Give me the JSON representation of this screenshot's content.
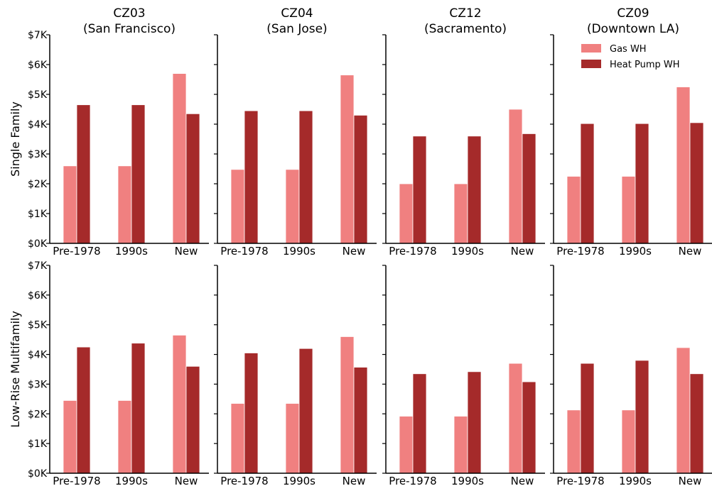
{
  "colors": {
    "gas": "#f08080",
    "heatpump": "#a52a2a"
  },
  "chart_data": {
    "type": "bar",
    "categories": [
      "Pre-1978",
      "1990s",
      "New"
    ],
    "columns": [
      {
        "zone": "CZ03",
        "city": "(San Francisco)"
      },
      {
        "zone": "CZ04",
        "city": "(San Jose)"
      },
      {
        "zone": "CZ12",
        "city": "(Sacramento)"
      },
      {
        "zone": "CZ09",
        "city": "(Downtown LA)"
      }
    ],
    "rows": [
      "Single Family",
      "Low-Rise Multifamily"
    ],
    "legend": {
      "entries": [
        "Gas WH",
        "Heat Pump WH"
      ],
      "position": "top-right"
    },
    "ylim": [
      0,
      7000
    ],
    "yticks": [
      "$0K",
      "$1K",
      "$2K",
      "$3K",
      "$4K",
      "$5K",
      "$6K",
      "$7K"
    ],
    "grid": false,
    "panels": [
      {
        "row": 0,
        "col": 0,
        "series": [
          {
            "name": "Gas WH",
            "values": [
              2600,
              2600,
              5700
            ]
          },
          {
            "name": "Heat Pump WH",
            "values": [
              4650,
              4650,
              4350
            ]
          }
        ]
      },
      {
        "row": 0,
        "col": 1,
        "series": [
          {
            "name": "Gas WH",
            "values": [
              2480,
              2480,
              5650
            ]
          },
          {
            "name": "Heat Pump WH",
            "values": [
              4450,
              4450,
              4300
            ]
          }
        ]
      },
      {
        "row": 0,
        "col": 2,
        "series": [
          {
            "name": "Gas WH",
            "values": [
              2000,
              2000,
              4500
            ]
          },
          {
            "name": "Heat Pump WH",
            "values": [
              3600,
              3600,
              3680
            ]
          }
        ]
      },
      {
        "row": 0,
        "col": 3,
        "series": [
          {
            "name": "Gas WH",
            "values": [
              2250,
              2250,
              5250
            ]
          },
          {
            "name": "Heat Pump WH",
            "values": [
              4020,
              4020,
              4050
            ]
          }
        ]
      },
      {
        "row": 1,
        "col": 0,
        "series": [
          {
            "name": "Gas WH",
            "values": [
              2450,
              2450,
              4650
            ]
          },
          {
            "name": "Heat Pump WH",
            "values": [
              4250,
              4380,
              3600
            ]
          }
        ]
      },
      {
        "row": 1,
        "col": 1,
        "series": [
          {
            "name": "Gas WH",
            "values": [
              2350,
              2350,
              4600
            ]
          },
          {
            "name": "Heat Pump WH",
            "values": [
              4050,
              4200,
              3570
            ]
          }
        ]
      },
      {
        "row": 1,
        "col": 2,
        "series": [
          {
            "name": "Gas WH",
            "values": [
              1920,
              1920,
              3700
            ]
          },
          {
            "name": "Heat Pump WH",
            "values": [
              3350,
              3420,
              3080
            ]
          }
        ]
      },
      {
        "row": 1,
        "col": 3,
        "series": [
          {
            "name": "Gas WH",
            "values": [
              2130,
              2130,
              4230
            ]
          },
          {
            "name": "Heat Pump WH",
            "values": [
              3700,
              3800,
              3350
            ]
          }
        ]
      }
    ]
  }
}
